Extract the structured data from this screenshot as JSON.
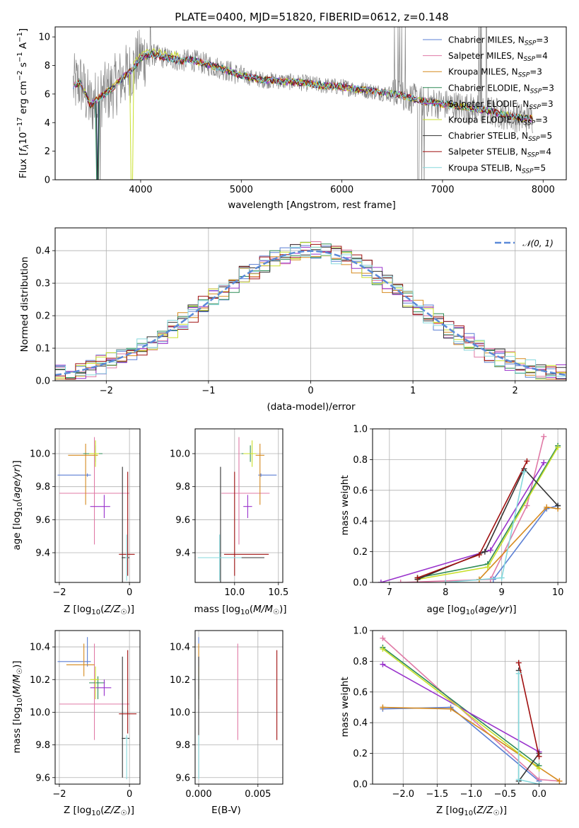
{
  "chart_data": [
    {
      "type": "line",
      "title": "PLATE=0400, MJD=51820, FIBERID=0612, z=0.148",
      "xlabel": "wavelength [Angstrom, rest frame]",
      "ylabel": "Flux [f_λ 10^-17 erg cm^-2 s^-1 A^-1]",
      "xlim": [
        3150,
        8230
      ],
      "ylim": [
        0,
        10.7
      ],
      "xticks": [
        4000,
        5000,
        6000,
        7000,
        8000
      ],
      "yticks": [
        0,
        2,
        4,
        6,
        8,
        10
      ],
      "legend_position": "top-right",
      "data_color": "#808080",
      "series": [
        {
          "name": "Chabrier MILES, N_SSP=3",
          "color": "#5b7fd4"
        },
        {
          "name": "Salpeter MILES, N_SSP=4",
          "color": "#e07aa6"
        },
        {
          "name": "Kroupa MILES, N_SSP=3",
          "color": "#d68a1e"
        },
        {
          "name": "Chabrier ELODIE, N_SSP=3",
          "color": "#2e8b57"
        },
        {
          "name": "Salpeter ELODIE, N_SSP=3",
          "color": "#9932cc"
        },
        {
          "name": "Kroupa ELODIE, N_SSP=3",
          "color": "#c9e02c"
        },
        {
          "name": "Chabrier STELIB, N_SSP=5",
          "color": "#333333"
        },
        {
          "name": "Salpeter STELIB, N_SSP=4",
          "color": "#a01010"
        },
        {
          "name": "Kroupa STELIB, N_SSP=5",
          "color": "#86d8dc"
        }
      ],
      "model_continuum": {
        "x": [
          3300,
          3400,
          3500,
          3600,
          3700,
          3800,
          3900,
          4000,
          4100,
          4200,
          4300,
          4400,
          4500,
          4600,
          4800,
          5000,
          5200,
          5400,
          5600,
          5800,
          6000,
          6200,
          6400,
          6600,
          6800,
          7000,
          7200,
          7400,
          7600,
          7800
        ],
        "y": [
          6.5,
          6.8,
          5.2,
          5.8,
          6.3,
          7.0,
          7.6,
          8.5,
          8.8,
          8.6,
          8.5,
          8.3,
          8.4,
          8.2,
          7.8,
          7.3,
          7.0,
          6.9,
          6.8,
          6.6,
          6.5,
          6.3,
          6.1,
          5.9,
          5.5,
          5.3,
          5.1,
          4.9,
          4.6,
          4.3
        ]
      }
    },
    {
      "type": "line",
      "xlabel": "(data-model)/error",
      "ylabel": "Normed distribution",
      "xlim": [
        -2.5,
        2.5
      ],
      "ylim": [
        0,
        0.47
      ],
      "xticks": [
        -2,
        -1,
        0,
        1,
        2
      ],
      "yticks": [
        0.0,
        0.1,
        0.2,
        0.3,
        0.4
      ],
      "grid": true,
      "legend_position": "top-right",
      "reference_curve": {
        "name": "N(0,1)",
        "mean": 0,
        "sigma": 1,
        "color": "#5b8ad8",
        "style": "dashed"
      },
      "histogram_bin_width": 0.1,
      "histogram_colors": [
        "#5b7fd4",
        "#e07aa6",
        "#d68a1e",
        "#2e8b57",
        "#9932cc",
        "#c9e02c",
        "#333333",
        "#a01010",
        "#86d8dc"
      ]
    },
    {
      "type": "scatter",
      "xlabel": "Z [log10(Z/Z☉)]",
      "ylabel": "age [log10(age/yr)]",
      "xlim": [
        -2.12,
        0.3
      ],
      "ylim": [
        9.22,
        10.15
      ],
      "xticks": [
        -2,
        0
      ],
      "yticks": [
        9.4,
        9.6,
        9.8,
        10.0
      ],
      "grid": true,
      "points": [
        {
          "series": "Chabrier MILES",
          "x": -1.2,
          "xerr": [
            0.85,
            0.1
          ],
          "y": 9.87,
          "yerr": [
            0.01,
            0.01
          ]
        },
        {
          "series": "Salpeter MILES",
          "x": -1.0,
          "xerr": [
            1.0,
            1.0
          ],
          "y": 9.76,
          "yerr": [
            0.31,
            0.34
          ]
        },
        {
          "series": "Kroupa MILES",
          "x": -1.25,
          "xerr": [
            0.5,
            0.35
          ],
          "y": 9.99,
          "yerr": [
            0.3,
            0.07
          ]
        },
        {
          "series": "Chabrier ELODIE",
          "x": -0.97,
          "xerr": [
            0.35,
            0.2
          ],
          "y": 10.0,
          "yerr": [
            0.05,
            0.05
          ]
        },
        {
          "series": "Salpeter ELODIE",
          "x": -0.72,
          "xerr": [
            0.4,
            0.17
          ],
          "y": 9.68,
          "yerr": [
            0.07,
            0.07
          ]
        },
        {
          "series": "Kroupa ELODIE",
          "x": -0.97,
          "xerr": [
            0.18,
            0.1
          ],
          "y": 10.0,
          "yerr": [
            0.08,
            0.08
          ]
        },
        {
          "series": "Chabrier STELIB",
          "x": -0.2,
          "xerr": [
            0.02,
            0.2
          ],
          "y": 9.37,
          "yerr": [
            0.15,
            0.55
          ]
        },
        {
          "series": "Salpeter STELIB",
          "x": -0.05,
          "xerr": [
            0.25,
            0.2
          ],
          "y": 9.39,
          "yerr": [
            0.13,
            0.5
          ]
        },
        {
          "series": "Kroupa STELIB",
          "x": -0.08,
          "xerr": [
            0.04,
            0.03
          ],
          "y": 9.37,
          "yerr": [
            0.14,
            0.14
          ]
        }
      ]
    },
    {
      "type": "scatter",
      "xlabel": "mass [log10(M/M☉)]",
      "xlim": [
        9.55,
        10.55
      ],
      "ylim": [
        9.22,
        10.15
      ],
      "xticks": [
        10.0,
        10.5
      ],
      "yticks": [
        9.4,
        9.6,
        9.8,
        10.0
      ],
      "grid": true,
      "points": [
        {
          "series": "Chabrier MILES",
          "x": 10.3,
          "xerr": [
            0.03,
            0.18
          ],
          "y": 9.87,
          "yerr": [
            0.01,
            0.01
          ]
        },
        {
          "series": "Salpeter MILES",
          "x": 10.05,
          "xerr": [
            0.2,
            0.35
          ],
          "y": 9.76,
          "yerr": [
            0.31,
            0.34
          ]
        },
        {
          "series": "Kroupa MILES",
          "x": 10.29,
          "xerr": [
            0.05,
            0.05
          ],
          "y": 9.99,
          "yerr": [
            0.3,
            0.07
          ]
        },
        {
          "series": "Chabrier ELODIE",
          "x": 10.18,
          "xerr": [
            0.1,
            0.04
          ],
          "y": 10.0,
          "yerr": [
            0.05,
            0.05
          ]
        },
        {
          "series": "Salpeter ELODIE",
          "x": 10.15,
          "xerr": [
            0.05,
            0.05
          ],
          "y": 9.68,
          "yerr": [
            0.07,
            0.07
          ]
        },
        {
          "series": "Kroupa ELODIE",
          "x": 10.2,
          "xerr": [
            0.1,
            0.05
          ],
          "y": 10.0,
          "yerr": [
            0.08,
            0.08
          ]
        },
        {
          "series": "Chabrier STELIB",
          "x": 9.84,
          "xerr": [
            0.2,
            0.5
          ],
          "y": 9.37,
          "yerr": [
            0.15,
            0.55
          ]
        },
        {
          "series": "Salpeter STELIB",
          "x": 10.0,
          "xerr": [
            0.12,
            0.39
          ],
          "y": 9.39,
          "yerr": [
            0.13,
            0.5
          ]
        },
        {
          "series": "Kroupa STELIB",
          "x": 9.83,
          "xerr": [
            0.25,
            0.25
          ],
          "y": 9.37,
          "yerr": [
            0.14,
            0.14
          ]
        }
      ]
    },
    {
      "type": "line",
      "xlabel": "age [log10(age/yr)]",
      "ylabel": "mass weight",
      "xlim": [
        6.7,
        10.15
      ],
      "ylim": [
        0,
        1.0
      ],
      "xticks": [
        7,
        8,
        9,
        10
      ],
      "yticks": [
        0.0,
        0.2,
        0.4,
        0.6,
        0.8,
        1.0
      ],
      "grid": true,
      "series": [
        {
          "name": "Chabrier MILES",
          "x": [
            8.85,
            9.8,
            10.0
          ],
          "y": [
            0.02,
            0.48,
            0.5
          ]
        },
        {
          "name": "Salpeter MILES",
          "x": [
            7.2,
            8.8,
            9.45,
            9.75
          ],
          "y": [
            0.0,
            0.02,
            0.5,
            0.95
          ]
        },
        {
          "name": "Kroupa MILES",
          "x": [
            8.6,
            9.8,
            10.0
          ],
          "y": [
            0.02,
            0.49,
            0.48
          ]
        },
        {
          "name": "Chabrier ELODIE",
          "x": [
            7.5,
            8.75,
            10.0
          ],
          "y": [
            0.03,
            0.12,
            0.89
          ]
        },
        {
          "name": "Salpeter ELODIE",
          "x": [
            6.85,
            8.8,
            9.75
          ],
          "y": [
            0.0,
            0.21,
            0.78
          ]
        },
        {
          "name": "Kroupa ELODIE",
          "x": [
            7.5,
            8.75,
            10.0
          ],
          "y": [
            0.02,
            0.1,
            0.88
          ]
        },
        {
          "name": "Chabrier STELIB",
          "x": [
            7.5,
            8.7,
            9.4,
            10.0
          ],
          "y": [
            0.02,
            0.2,
            0.74,
            0.5
          ]
        },
        {
          "name": "Salpeter STELIB",
          "x": [
            7.5,
            8.6,
            9.45
          ],
          "y": [
            0.03,
            0.18,
            0.79
          ]
        },
        {
          "name": "Kroupa STELIB",
          "x": [
            8.0,
            9.0,
            9.4
          ],
          "y": [
            0.0,
            0.03,
            0.72
          ]
        }
      ]
    },
    {
      "type": "scatter",
      "xlabel": "Z [log10(Z/Z☉)]",
      "ylabel": "mass [log10(M/M☉)]",
      "xlim": [
        -2.12,
        0.3
      ],
      "ylim": [
        9.56,
        10.5
      ],
      "xticks": [
        -2,
        0
      ],
      "yticks": [
        9.6,
        9.8,
        10.0,
        10.2,
        10.4
      ],
      "grid": true,
      "points": [
        {
          "series": "Chabrier MILES",
          "x": -1.2,
          "xerr": [
            0.85,
            0.1
          ],
          "y": 10.31,
          "yerr": [
            0.03,
            0.15
          ]
        },
        {
          "series": "Salpeter MILES",
          "x": -1.0,
          "xerr": [
            1.0,
            1.0
          ],
          "y": 10.05,
          "yerr": [
            0.22,
            0.37
          ]
        },
        {
          "series": "Kroupa MILES",
          "x": -1.3,
          "xerr": [
            0.5,
            0.3
          ],
          "y": 10.29,
          "yerr": [
            0.07,
            0.13
          ]
        },
        {
          "series": "Chabrier ELODIE",
          "x": -0.9,
          "xerr": [
            0.25,
            0.2
          ],
          "y": 10.18,
          "yerr": [
            0.1,
            0.04
          ]
        },
        {
          "series": "Salpeter ELODIE",
          "x": -0.72,
          "xerr": [
            0.4,
            0.2
          ],
          "y": 10.15,
          "yerr": [
            0.05,
            0.05
          ]
        },
        {
          "series": "Kroupa ELODIE",
          "x": -0.97,
          "xerr": [
            0.15,
            0.1
          ],
          "y": 10.2,
          "yerr": [
            0.12,
            0.08
          ]
        },
        {
          "series": "Chabrier STELIB",
          "x": -0.2,
          "xerr": [
            0.02,
            0.2
          ],
          "y": 9.84,
          "yerr": [
            0.24,
            0.5
          ]
        },
        {
          "series": "Salpeter STELIB",
          "x": -0.05,
          "xerr": [
            0.25,
            0.25
          ],
          "y": 9.99,
          "yerr": [
            0.12,
            0.39
          ]
        },
        {
          "series": "Kroupa STELIB",
          "x": -0.08,
          "xerr": [
            0.04,
            0.03
          ],
          "y": 9.84,
          "yerr": [
            0.25,
            0.02
          ]
        }
      ]
    },
    {
      "type": "scatter",
      "xlabel": "E(B-V)",
      "xlim": [
        -0.0003,
        0.0071
      ],
      "ylim": [
        9.56,
        10.5
      ],
      "xticks": [
        0.0,
        0.005
      ],
      "yticks": [
        9.6,
        9.8,
        10.0,
        10.2,
        10.4
      ],
      "grid": true,
      "points": [
        {
          "series": "Chabrier MILES",
          "x": 0.0,
          "y": 10.31,
          "yerr": [
            0.03,
            0.15
          ]
        },
        {
          "series": "Salpeter MILES",
          "x": 0.0033,
          "y": 10.05,
          "yerr": [
            0.22,
            0.37
          ]
        },
        {
          "series": "Kroupa MILES",
          "x": 0.0,
          "y": 10.29,
          "yerr": [
            0.07,
            0.13
          ]
        },
        {
          "series": "Chabrier ELODIE",
          "x": 0.0,
          "y": 10.18,
          "yerr": [
            0.1,
            0.04
          ]
        },
        {
          "series": "Salpeter ELODIE",
          "x": 0.0,
          "y": 10.15,
          "yerr": [
            0.05,
            0.05
          ]
        },
        {
          "series": "Kroupa ELODIE",
          "x": 0.0,
          "y": 10.2,
          "yerr": [
            0.12,
            0.08
          ]
        },
        {
          "series": "Chabrier STELIB",
          "x": 0.0,
          "y": 9.84,
          "yerr": [
            0.24,
            0.5
          ]
        },
        {
          "series": "Salpeter STELIB",
          "x": 0.0066,
          "y": 9.99,
          "yerr": [
            0.16,
            0.39
          ]
        },
        {
          "series": "Kroupa STELIB",
          "x": 0.0,
          "y": 9.84,
          "yerr": [
            0.25,
            0.02
          ]
        }
      ]
    },
    {
      "type": "line",
      "xlabel": "Z [log10(Z/Z☉)]",
      "ylabel": "mass weight",
      "xlim": [
        -2.45,
        0.4
      ],
      "ylim": [
        0,
        1.0
      ],
      "xticks": [
        -2.0,
        -1.5,
        -1.0,
        -0.5,
        0.0
      ],
      "yticks": [
        0.0,
        0.2,
        0.4,
        0.6,
        0.8,
        1.0
      ],
      "grid": true,
      "series": [
        {
          "name": "Chabrier MILES",
          "x": [
            -2.3,
            -1.3,
            0.0
          ],
          "y": [
            0.49,
            0.5,
            0.02
          ]
        },
        {
          "name": "Salpeter MILES",
          "x": [
            -2.3,
            0.0,
            0.3
          ],
          "y": [
            0.95,
            0.03,
            0.02
          ]
        },
        {
          "name": "Kroupa MILES",
          "x": [
            -2.3,
            -1.3,
            0.3
          ],
          "y": [
            0.5,
            0.49,
            0.02
          ]
        },
        {
          "name": "Chabrier ELODIE",
          "x": [
            -2.3,
            0.0
          ],
          "y": [
            0.89,
            0.12
          ]
        },
        {
          "name": "Salpeter ELODIE",
          "x": [
            -2.3,
            0.0
          ],
          "y": [
            0.78,
            0.21
          ]
        },
        {
          "name": "Kroupa ELODIE",
          "x": [
            -2.3,
            0.0
          ],
          "y": [
            0.88,
            0.1
          ]
        },
        {
          "name": "Chabrier STELIB",
          "x": [
            -0.3,
            -0.3,
            0.0
          ],
          "y": [
            0.74,
            0.02,
            0.2
          ]
        },
        {
          "name": "Salpeter STELIB",
          "x": [
            -0.3,
            0.0
          ],
          "y": [
            0.79,
            0.18
          ]
        },
        {
          "name": "Kroupa STELIB",
          "x": [
            -0.3,
            -0.3,
            0.0
          ],
          "y": [
            0.72,
            0.03,
            0.0
          ]
        }
      ]
    }
  ],
  "legend_labels": {
    "spectrum": [
      [
        "Chabrier MILES, N",
        "SSP",
        "=3"
      ],
      [
        "Salpeter MILES, N",
        "SSP",
        "=4"
      ],
      [
        "Kroupa MILES, N",
        "SSP",
        "=3"
      ],
      [
        "Chabrier ELODIE, N",
        "SSP",
        "=3"
      ],
      [
        "Salpeter ELODIE, N",
        "SSP",
        "=3"
      ],
      [
        "Kroupa ELODIE, N",
        "SSP",
        "=3"
      ],
      [
        "Chabrier STELIB, N",
        "SSP",
        "=5"
      ],
      [
        "Salpeter STELIB, N",
        "SSP",
        "=4"
      ],
      [
        "Kroupa STELIB, N",
        "SSP",
        "=5"
      ]
    ],
    "normal": "𝒩(0, 1)"
  }
}
